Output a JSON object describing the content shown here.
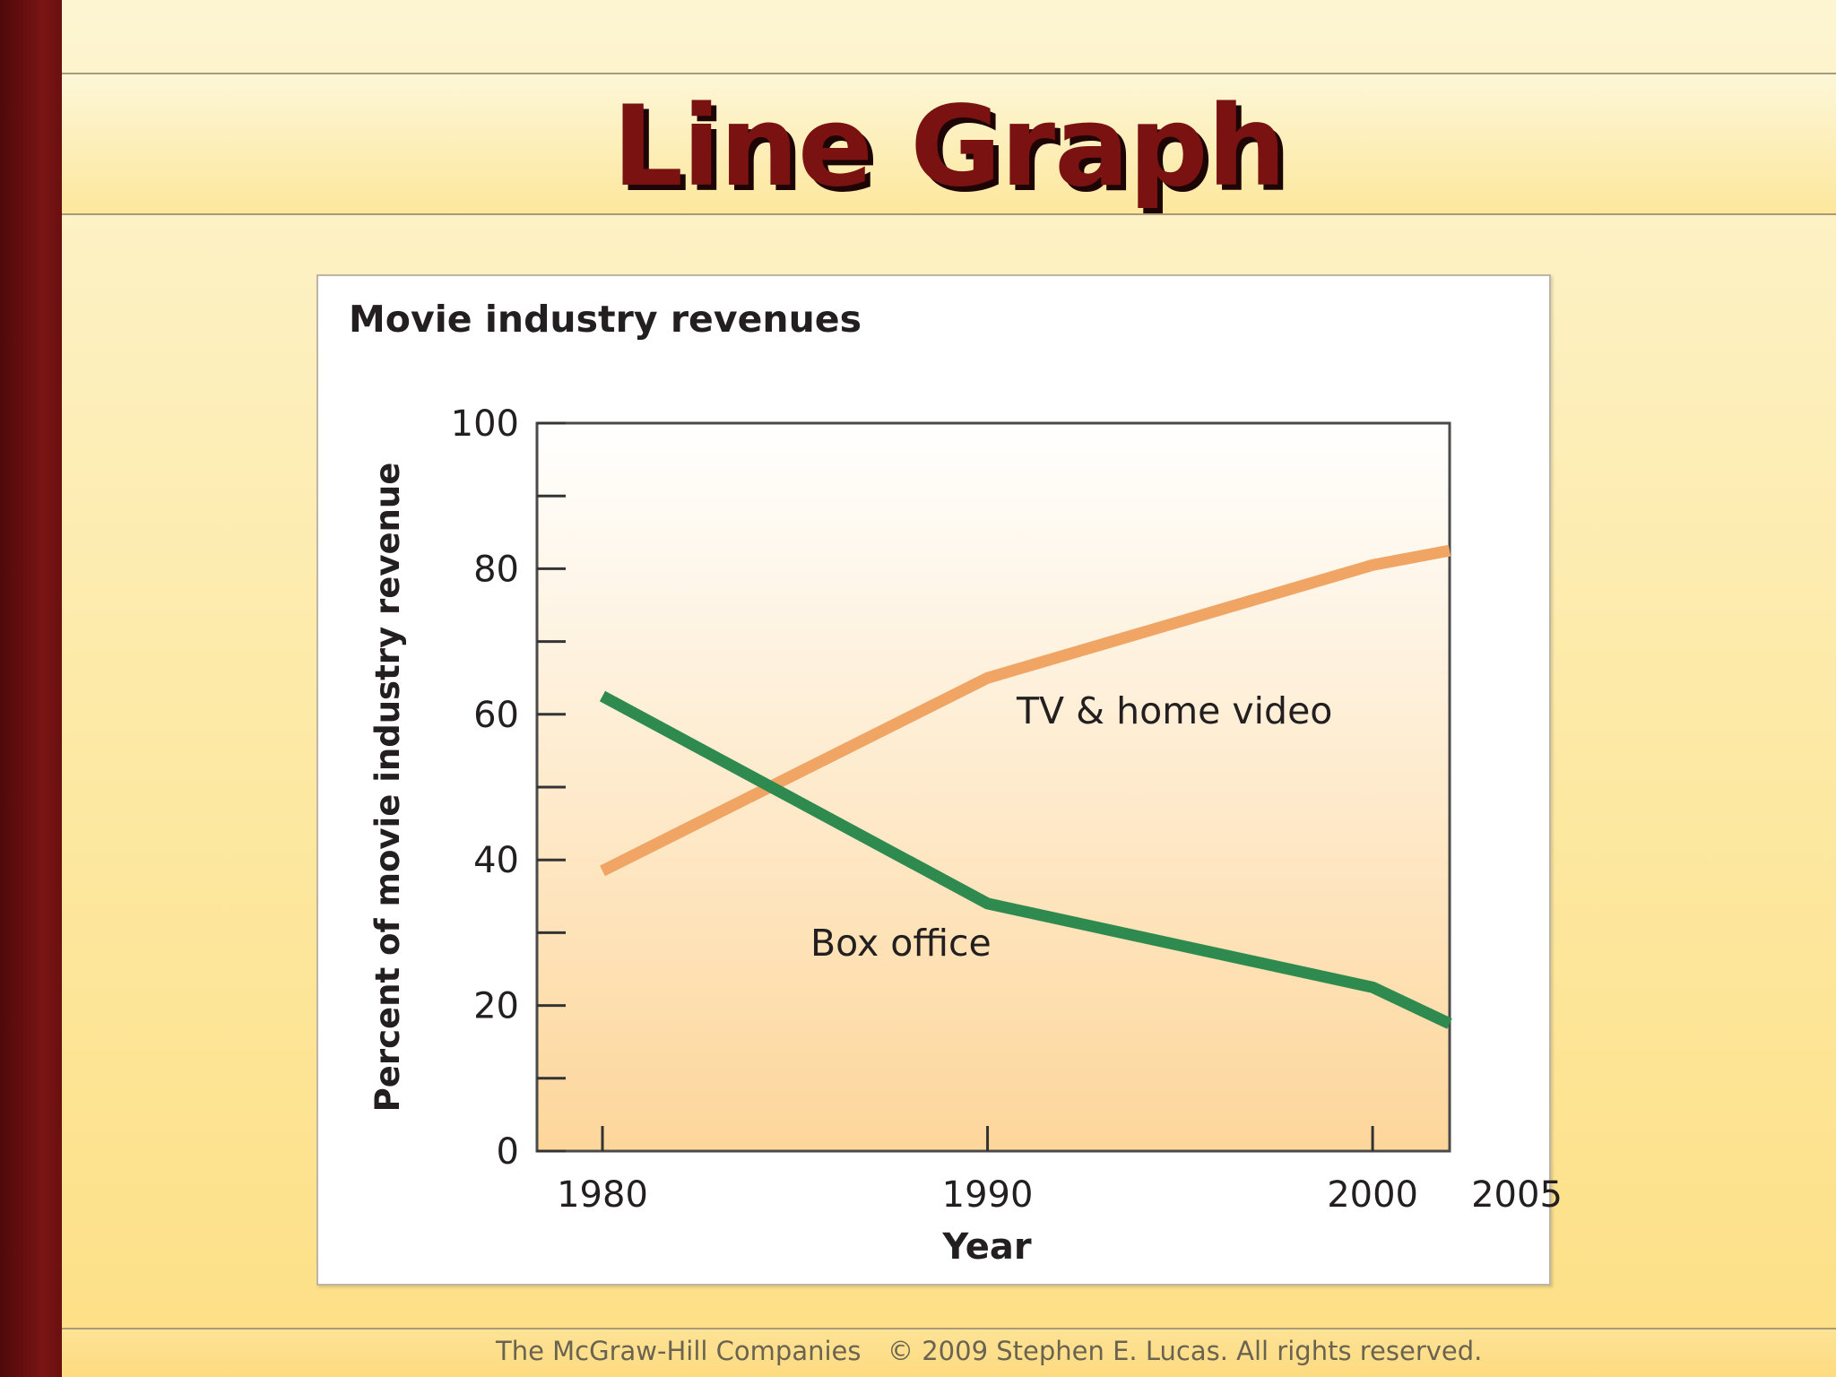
{
  "slide": {
    "title": "Line Graph",
    "footer_company": "The McGraw-Hill Companies",
    "footer_copyright": "© 2009 Stephen E. Lucas. All rights reserved."
  },
  "chart_data": {
    "type": "line",
    "title": "Movie industry revenues",
    "xlabel": "Year",
    "ylabel": "Percent of movie industry revenue",
    "xlim": [
      1978.3,
      2002.0
    ],
    "ylim": [
      0,
      100
    ],
    "x_ticks": [
      1980,
      1990,
      2000,
      2005
    ],
    "y_ticks": [
      0,
      20,
      40,
      60,
      80,
      100
    ],
    "y_minor_ticks": [
      10,
      30,
      50,
      70,
      90
    ],
    "grid": false,
    "series": [
      {
        "name": "TV & home video",
        "color": "#f0a565",
        "x": [
          1980,
          1990,
          2000,
          2002
        ],
        "y": [
          38.5,
          65,
          80.5,
          82.5
        ]
      },
      {
        "name": "Box office",
        "color": "#2e8a4e",
        "x": [
          1980,
          1990,
          2000,
          2002
        ],
        "y": [
          62.5,
          34,
          22.5,
          17.5
        ]
      }
    ]
  }
}
